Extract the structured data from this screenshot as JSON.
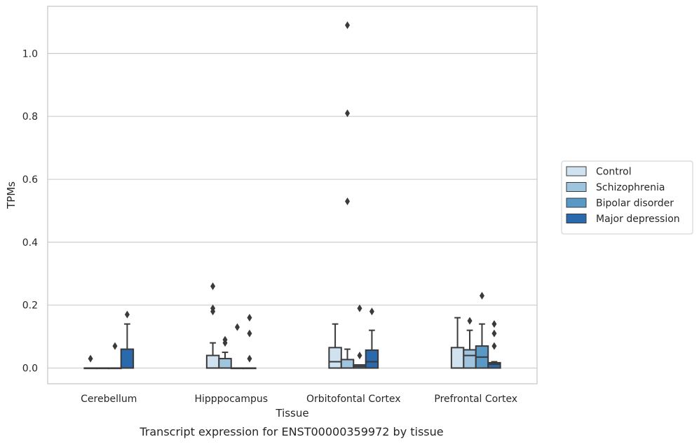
{
  "chart_data": {
    "type": "box",
    "title": "",
    "caption": "Transcript expression for ENST00000359972 by tissue",
    "xlabel": "Tissue",
    "ylabel": "TPMs",
    "ylim": [
      -0.05,
      1.15
    ],
    "yticks": [
      0.0,
      0.2,
      0.4,
      0.6,
      0.8,
      1.0
    ],
    "ytick_labels": [
      "0.0",
      "0.2",
      "0.4",
      "0.6",
      "0.8",
      "1.0"
    ],
    "grid": "horizontal",
    "legend_position": "right",
    "categories": [
      "Cerebellum",
      "Hipppocampus",
      "Orbitofontal Cortex",
      "Prefrontal Cortex"
    ],
    "series": [
      {
        "name": "Control",
        "color": "#d0e1f0",
        "boxes": [
          {
            "q1": 0.0,
            "median": 0.0,
            "q3": 0.0,
            "whisker_low": 0.0,
            "whisker_high": 0.0,
            "outliers": [
              0.03
            ]
          },
          {
            "q1": 0.0,
            "median": 0.0,
            "q3": 0.04,
            "whisker_low": 0.0,
            "whisker_high": 0.08,
            "outliers": [
              0.18,
              0.19,
              0.26
            ]
          },
          {
            "q1": 0.0,
            "median": 0.02,
            "q3": 0.065,
            "whisker_low": 0.0,
            "whisker_high": 0.14,
            "outliers": []
          },
          {
            "q1": 0.0,
            "median": 0.0,
            "q3": 0.065,
            "whisker_low": 0.0,
            "whisker_high": 0.16,
            "outliers": []
          }
        ]
      },
      {
        "name": "Schizophrenia",
        "color": "#9fc4de",
        "boxes": [
          {
            "q1": 0.0,
            "median": 0.0,
            "q3": 0.0,
            "whisker_low": 0.0,
            "whisker_high": 0.0,
            "outliers": []
          },
          {
            "q1": 0.0,
            "median": 0.0,
            "q3": 0.03,
            "whisker_low": 0.0,
            "whisker_high": 0.05,
            "outliers": [
              0.08,
              0.09
            ]
          },
          {
            "q1": 0.0,
            "median": 0.0,
            "q3": 0.027,
            "whisker_low": 0.0,
            "whisker_high": 0.06,
            "outliers": [
              0.53,
              0.81,
              1.09
            ]
          },
          {
            "q1": 0.0,
            "median": 0.04,
            "q3": 0.058,
            "whisker_low": 0.0,
            "whisker_high": 0.12,
            "outliers": [
              0.15
            ]
          }
        ]
      },
      {
        "name": "Bipolar disorder",
        "color": "#5899c6",
        "boxes": [
          {
            "q1": 0.0,
            "median": 0.0,
            "q3": 0.0,
            "whisker_low": 0.0,
            "whisker_high": 0.0,
            "outliers": [
              0.07
            ]
          },
          {
            "q1": 0.0,
            "median": 0.0,
            "q3": 0.0,
            "whisker_low": 0.0,
            "whisker_high": 0.0,
            "outliers": [
              0.13
            ]
          },
          {
            "q1": 0.0,
            "median": 0.005,
            "q3": 0.01,
            "whisker_low": 0.0,
            "whisker_high": 0.01,
            "outliers": [
              0.04,
              0.19
            ]
          },
          {
            "q1": 0.0,
            "median": 0.035,
            "q3": 0.07,
            "whisker_low": 0.0,
            "whisker_high": 0.14,
            "outliers": [
              0.23
            ]
          }
        ]
      },
      {
        "name": "Major depression",
        "color": "#2a6aac",
        "boxes": [
          {
            "q1": 0.0,
            "median": 0.0,
            "q3": 0.06,
            "whisker_low": 0.0,
            "whisker_high": 0.14,
            "outliers": [
              0.17
            ]
          },
          {
            "q1": 0.0,
            "median": 0.0,
            "q3": 0.0,
            "whisker_low": 0.0,
            "whisker_high": 0.0,
            "outliers": [
              0.03,
              0.11,
              0.16
            ]
          },
          {
            "q1": 0.0,
            "median": 0.02,
            "q3": 0.057,
            "whisker_low": 0.0,
            "whisker_high": 0.12,
            "outliers": [
              0.18
            ]
          },
          {
            "q1": 0.0,
            "median": 0.012,
            "q3": 0.017,
            "whisker_low": 0.0,
            "whisker_high": 0.02,
            "outliers": [
              0.07,
              0.11,
              0.14
            ]
          }
        ]
      }
    ]
  }
}
